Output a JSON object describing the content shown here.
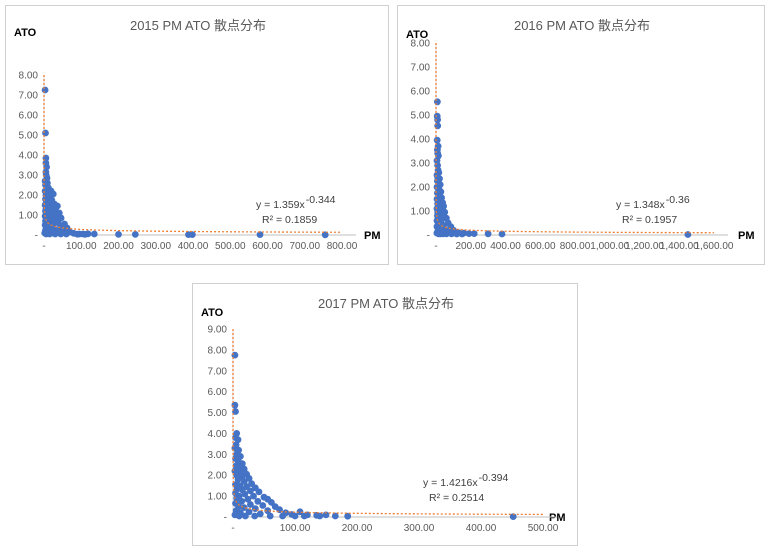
{
  "chart_data": [
    {
      "type": "scatter",
      "title": "2015 PM ATO 散点分布",
      "xlabel": "PM",
      "ylabel": "ATO",
      "xlim": [
        0,
        800
      ],
      "ylim": [
        0,
        8
      ],
      "x_ticks": [
        "-",
        "100.00",
        "200.00",
        "300.00",
        "400.00",
        "500.00",
        "600.00",
        "700.00",
        "800.00"
      ],
      "y_ticks": [
        "-",
        "1.00",
        "2.00",
        "3.00",
        "4.00",
        "5.00",
        "6.00",
        "7.00",
        "8.00"
      ],
      "grid": false,
      "marker_color": "#4472c4",
      "trendline": {
        "type": "power",
        "a": 1.359,
        "b": -0.344,
        "color": "#ed7d31",
        "equation_prefix": "y = 1.359x",
        "equation_exponent": "-0.344",
        "r2_label": "R² = 0.1859"
      },
      "series": [
        {
          "points": [
            [
              3,
              7.25
            ],
            [
              4,
              5.1
            ],
            [
              5,
              3.85
            ],
            [
              5,
              3.6
            ],
            [
              7,
              3.4
            ],
            [
              5,
              3.15
            ],
            [
              6,
              3.0
            ],
            [
              8,
              2.85
            ],
            [
              3,
              2.7
            ],
            [
              9,
              2.6
            ],
            [
              4,
              2.5
            ],
            [
              7,
              2.4
            ],
            [
              12,
              2.35
            ],
            [
              3,
              2.2
            ],
            [
              10,
              2.2
            ],
            [
              19,
              2.2
            ],
            [
              25,
              2.05
            ],
            [
              5,
              2.0
            ],
            [
              15,
              2.0
            ],
            [
              9,
              1.9
            ],
            [
              4,
              1.8
            ],
            [
              13,
              1.75
            ],
            [
              21,
              1.75
            ],
            [
              6,
              1.6
            ],
            [
              17,
              1.6
            ],
            [
              28,
              1.55
            ],
            [
              3,
              1.5
            ],
            [
              11,
              1.5
            ],
            [
              36,
              1.45
            ],
            [
              8,
              1.4
            ],
            [
              22,
              1.4
            ],
            [
              5,
              1.3
            ],
            [
              15,
              1.3
            ],
            [
              31,
              1.3
            ],
            [
              4,
              1.2
            ],
            [
              12,
              1.2
            ],
            [
              26,
              1.15
            ],
            [
              41,
              1.1
            ],
            [
              7,
              1.05
            ],
            [
              19,
              1.05
            ],
            [
              3,
              0.95
            ],
            [
              10,
              0.95
            ],
            [
              33,
              0.95
            ],
            [
              16,
              0.9
            ],
            [
              46,
              0.85
            ],
            [
              6,
              0.8
            ],
            [
              24,
              0.8
            ],
            [
              4,
              0.7
            ],
            [
              13,
              0.7
            ],
            [
              38,
              0.7
            ],
            [
              9,
              0.6
            ],
            [
              29,
              0.6
            ],
            [
              55,
              0.55
            ],
            [
              3,
              0.5
            ],
            [
              18,
              0.5
            ],
            [
              44,
              0.45
            ],
            [
              7,
              0.4
            ],
            [
              62,
              0.35
            ],
            [
              26,
              0.35
            ],
            [
              14,
              0.3
            ],
            [
              4,
              0.25
            ],
            [
              48,
              0.25
            ],
            [
              36,
              0.2
            ],
            [
              10,
              0.15
            ],
            [
              70,
              0.15
            ],
            [
              58,
              0.12
            ],
            [
              22,
              0.1
            ],
            [
              80,
              0.08
            ],
            [
              95,
              0.05
            ],
            [
              118,
              0.06
            ],
            [
              135,
              0.05
            ],
            [
              200,
              0.03
            ],
            [
              245,
              0.03
            ],
            [
              388,
              0.02
            ],
            [
              398,
              0.02
            ],
            [
              580,
              0.02
            ],
            [
              755,
              0.01
            ],
            [
              2,
              0.1
            ],
            [
              6,
              0.05
            ],
            [
              15,
              0.05
            ],
            [
              30,
              0.05
            ],
            [
              45,
              0.05
            ],
            [
              60,
              0.05
            ],
            [
              90,
              0.04
            ],
            [
              105,
              0.05
            ],
            [
              110,
              0.03
            ]
          ]
        }
      ]
    },
    {
      "type": "scatter",
      "title": "2016 PM ATO 散点分布",
      "xlabel": "PM",
      "ylabel": "ATO",
      "xlim": [
        0,
        1600
      ],
      "ylim": [
        0,
        8
      ],
      "x_ticks": [
        "-",
        "200.00",
        "400.00",
        "600.00",
        "800.00",
        "1,000.00",
        "1,200.00",
        "1,400.00",
        "1,600.00"
      ],
      "y_ticks": [
        "-",
        "1.00",
        "2.00",
        "3.00",
        "4.00",
        "5.00",
        "6.00",
        "7.00",
        "8.00"
      ],
      "grid": false,
      "marker_color": "#4472c4",
      "trendline": {
        "type": "power",
        "a": 1.348,
        "b": -0.36,
        "color": "#ed7d31",
        "equation_prefix": "y = 1.348x",
        "equation_exponent": "-0.36",
        "r2_label": "R² = 0.1957"
      },
      "series": [
        {
          "points": [
            [
              8,
              5.55
            ],
            [
              7,
              4.95
            ],
            [
              9,
              4.8
            ],
            [
              10,
              4.55
            ],
            [
              7,
              3.95
            ],
            [
              12,
              3.7
            ],
            [
              8,
              3.55
            ],
            [
              10,
              3.4
            ],
            [
              14,
              3.3
            ],
            [
              6,
              3.1
            ],
            [
              9,
              2.9
            ],
            [
              12,
              2.7
            ],
            [
              16,
              2.6
            ],
            [
              6,
              2.5
            ],
            [
              10,
              2.4
            ],
            [
              20,
              2.35
            ],
            [
              8,
              2.25
            ],
            [
              14,
              2.2
            ],
            [
              24,
              2.1
            ],
            [
              6,
              2.0
            ],
            [
              11,
              2.0
            ],
            [
              18,
              1.9
            ],
            [
              28,
              1.8
            ],
            [
              8,
              1.75
            ],
            [
              14,
              1.7
            ],
            [
              22,
              1.6
            ],
            [
              32,
              1.55
            ],
            [
              6,
              1.5
            ],
            [
              12,
              1.45
            ],
            [
              18,
              1.4
            ],
            [
              38,
              1.35
            ],
            [
              9,
              1.3
            ],
            [
              26,
              1.25
            ],
            [
              44,
              1.2
            ],
            [
              15,
              1.15
            ],
            [
              6,
              1.1
            ],
            [
              34,
              1.05
            ],
            [
              20,
              1.0
            ],
            [
              10,
              0.95
            ],
            [
              50,
              0.95
            ],
            [
              28,
              0.85
            ],
            [
              8,
              0.8
            ],
            [
              40,
              0.75
            ],
            [
              16,
              0.7
            ],
            [
              60,
              0.7
            ],
            [
              6,
              0.6
            ],
            [
              30,
              0.6
            ],
            [
              22,
              0.5
            ],
            [
              70,
              0.5
            ],
            [
              12,
              0.45
            ],
            [
              45,
              0.4
            ],
            [
              6,
              0.35
            ],
            [
              85,
              0.35
            ],
            [
              34,
              0.3
            ],
            [
              18,
              0.25
            ],
            [
              100,
              0.2
            ],
            [
              55,
              0.2
            ],
            [
              10,
              0.15
            ],
            [
              130,
              0.1
            ],
            [
              75,
              0.1
            ],
            [
              160,
              0.08
            ],
            [
              190,
              0.06
            ],
            [
              220,
              0.06
            ],
            [
              300,
              0.05
            ],
            [
              380,
              0.04
            ],
            [
              1450,
              0.02
            ],
            [
              5,
              0.08
            ],
            [
              15,
              0.05
            ],
            [
              25,
              0.05
            ],
            [
              40,
              0.05
            ],
            [
              60,
              0.05
            ],
            [
              90,
              0.05
            ],
            [
              120,
              0.04
            ],
            [
              150,
              0.04
            ]
          ]
        }
      ]
    },
    {
      "type": "scatter",
      "title": "2017 PM ATO 散点分布",
      "xlabel": "PM",
      "ylabel": "ATO",
      "xlim": [
        0,
        500
      ],
      "ylim": [
        0,
        9
      ],
      "x_ticks": [
        "-",
        "100.00",
        "200.00",
        "300.00",
        "400.00",
        "500.00"
      ],
      "y_ticks": [
        "-",
        "1.00",
        "2.00",
        "3.00",
        "4.00",
        "5.00",
        "6.00",
        "7.00",
        "8.00",
        "9.00"
      ],
      "grid": false,
      "marker_color": "#4472c4",
      "trendline": {
        "type": "power",
        "a": 1.4216,
        "b": -0.394,
        "color": "#ed7d31",
        "equation_prefix": "y = 1.4216x",
        "equation_exponent": "-0.394",
        "r2_label": "R² = 0.2514"
      },
      "series": [
        {
          "points": [
            [
              3,
              7.75
            ],
            [
              3,
              5.35
            ],
            [
              4,
              5.05
            ],
            [
              6,
              4.0
            ],
            [
              4,
              3.8
            ],
            [
              8,
              3.7
            ],
            [
              5,
              3.45
            ],
            [
              3,
              3.3
            ],
            [
              9,
              3.2
            ],
            [
              6,
              3.0
            ],
            [
              12,
              2.9
            ],
            [
              4,
              2.8
            ],
            [
              8,
              2.7
            ],
            [
              15,
              2.55
            ],
            [
              5,
              2.45
            ],
            [
              10,
              2.4
            ],
            [
              18,
              2.3
            ],
            [
              3,
              2.2
            ],
            [
              12,
              2.15
            ],
            [
              22,
              2.05
            ],
            [
              6,
              2.0
            ],
            [
              15,
              1.95
            ],
            [
              26,
              1.85
            ],
            [
              8,
              1.8
            ],
            [
              18,
              1.7
            ],
            [
              30,
              1.6
            ],
            [
              4,
              1.55
            ],
            [
              11,
              1.5
            ],
            [
              22,
              1.45
            ],
            [
              36,
              1.4
            ],
            [
              7,
              1.35
            ],
            [
              15,
              1.3
            ],
            [
              28,
              1.25
            ],
            [
              42,
              1.2
            ],
            [
              4,
              1.15
            ],
            [
              19,
              1.1
            ],
            [
              10,
              1.0
            ],
            [
              33,
              1.0
            ],
            [
              50,
              0.95
            ],
            [
              6,
              0.9
            ],
            [
              24,
              0.85
            ],
            [
              56,
              0.85
            ],
            [
              14,
              0.75
            ],
            [
              40,
              0.75
            ],
            [
              62,
              0.7
            ],
            [
              4,
              0.65
            ],
            [
              28,
              0.6
            ],
            [
              48,
              0.55
            ],
            [
              9,
              0.5
            ],
            [
              68,
              0.5
            ],
            [
              18,
              0.45
            ],
            [
              36,
              0.4
            ],
            [
              75,
              0.35
            ],
            [
              5,
              0.3
            ],
            [
              56,
              0.3
            ],
            [
              26,
              0.25
            ],
            [
              85,
              0.2
            ],
            [
              12,
              0.2
            ],
            [
              44,
              0.15
            ],
            [
              95,
              0.12
            ],
            [
              108,
              0.25
            ],
            [
              120,
              0.1
            ],
            [
              135,
              0.08
            ],
            [
              150,
              0.1
            ],
            [
              165,
              0.05
            ],
            [
              185,
              0.04
            ],
            [
              452,
              0.02
            ],
            [
              3,
              0.1
            ],
            [
              10,
              0.05
            ],
            [
              20,
              0.05
            ],
            [
              35,
              0.05
            ],
            [
              60,
              0.05
            ],
            [
              80,
              0.05
            ],
            [
              100,
              0.05
            ],
            [
              115,
              0.05
            ],
            [
              140,
              0.05
            ]
          ]
        }
      ]
    }
  ]
}
